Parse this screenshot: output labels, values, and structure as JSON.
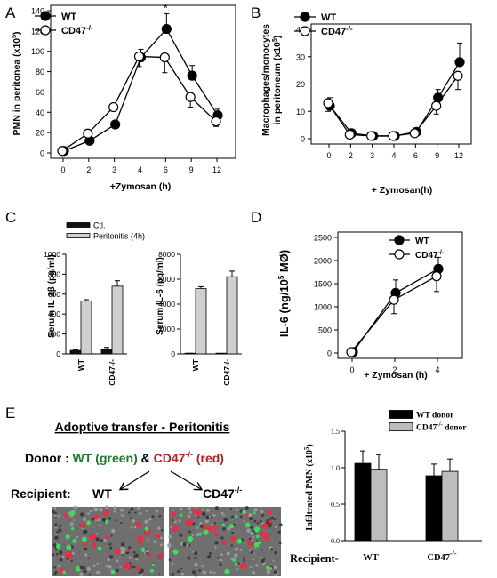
{
  "panels": {
    "A": {
      "letter": "A"
    },
    "B": {
      "letter": "B"
    },
    "C": {
      "letter": "C"
    },
    "D": {
      "letter": "D"
    },
    "E": {
      "letter": "E"
    }
  },
  "transfer": {
    "title": "Adoptive transfer - Peritonitis",
    "donor_prefix": "Donor : ",
    "donor_wt": "WT (green)",
    "donor_amp": " & ",
    "donor_cd47": "CD47",
    "donor_cd47_sup": "-/-",
    "donor_cd47_suffix": " (red)",
    "recipient_label": "Recipient:",
    "recipient_wt": "WT",
    "recipient_cd47": "CD47",
    "recipient_cd47_sup": "-/-",
    "colors": {
      "wt": "#1f7a2e",
      "cd47": "#b22222"
    }
  },
  "chart_data": [
    {
      "panel": "A",
      "type": "line",
      "x": [
        "0",
        "2",
        "3",
        "4",
        "6",
        "9",
        "12"
      ],
      "series": [
        {
          "name": "WT",
          "marker": "filled",
          "values": [
            2,
            12,
            28,
            94,
            122,
            76,
            37
          ],
          "errors": [
            0,
            3,
            3,
            8,
            15,
            10,
            6
          ]
        },
        {
          "name": "CD47",
          "name_sup": "-/-",
          "marker": "open",
          "values": [
            2,
            19,
            45,
            95,
            94,
            55,
            31
          ],
          "errors": [
            0,
            3,
            3,
            10,
            15,
            10,
            5
          ]
        }
      ],
      "ylim": [
        0,
        140
      ],
      "yticks": [
        "0",
        "20",
        "40",
        "60",
        "80",
        "100",
        "120",
        "140"
      ],
      "ylabel": "PMN in peritonea (x10",
      "ylabel_sup": "5",
      "ylabel_end": ")",
      "xlabel": "+Zymosan (h)",
      "annotation": "*",
      "annotation_index": 4,
      "legend": "top-left"
    },
    {
      "panel": "B",
      "type": "line",
      "x": [
        "0",
        "2",
        "3",
        "4",
        "6",
        "9",
        "12"
      ],
      "series": [
        {
          "name": "WT",
          "marker": "filled",
          "values": [
            12,
            2,
            1,
            1,
            2.5,
            15,
            28
          ],
          "errors": [
            3,
            1,
            0.5,
            0.5,
            1,
            3,
            7
          ]
        },
        {
          "name": "CD47",
          "name_sup": "-/-",
          "marker": "open",
          "values": [
            13,
            1.5,
            1,
            1,
            2,
            12,
            23
          ],
          "errors": [
            3,
            1,
            0.5,
            0.5,
            1,
            3,
            5
          ]
        }
      ],
      "ylim": [
        0,
        40
      ],
      "yticks": [
        "0",
        "10",
        "20",
        "30",
        "40"
      ],
      "ylabel_line1": "Macrophages/monocytes",
      "ylabel_line2": "in peritoneum (x10",
      "ylabel_sup": "5",
      "ylabel_end": ")",
      "xlabel": "+ Zymosan(h)",
      "legend": "top-left"
    },
    {
      "panel": "C1",
      "type": "bar",
      "categories": [
        "WT",
        "CD47-/-"
      ],
      "series": [
        {
          "name": "Ctl.",
          "color": "#111111",
          "values": [
            35,
            45
          ],
          "errors": [
            8,
            20
          ]
        },
        {
          "name": "Peritonitis (4h)",
          "color": "#cfcfcf",
          "values": [
            530,
            680
          ],
          "errors": [
            15,
            55
          ]
        }
      ],
      "ylim": [
        0,
        1000
      ],
      "yticks": [
        "0",
        "200",
        "400",
        "600",
        "800",
        "1000"
      ],
      "ylabel": "Serum IL-1β (pg/ml)",
      "legend": "top-left"
    },
    {
      "panel": "C2",
      "type": "bar",
      "categories": [
        "WT",
        "CD47-/-"
      ],
      "series": [
        {
          "name": "Ctl.",
          "color": "#111111",
          "values": [
            40,
            30
          ],
          "errors": [
            10,
            10
          ]
        },
        {
          "name": "Peritonitis (4h)",
          "color": "#cfcfcf",
          "values": [
            5250,
            6200
          ],
          "errors": [
            150,
            450
          ]
        }
      ],
      "ylim": [
        0,
        8000
      ],
      "yticks": [
        "0",
        "2000",
        "4000",
        "6000",
        "8000"
      ],
      "ylabel": "Serum IL-6 (pg/ml)"
    },
    {
      "panel": "D",
      "type": "line",
      "x": [
        "0",
        "2",
        "4"
      ],
      "series": [
        {
          "name": "WT",
          "marker": "filled",
          "values": [
            20,
            1300,
            1820
          ],
          "errors": [
            0,
            280,
            250
          ]
        },
        {
          "name": "CD47",
          "name_sup": "-/-",
          "marker": "open",
          "values": [
            20,
            1150,
            1660
          ],
          "errors": [
            0,
            300,
            330
          ]
        }
      ],
      "ylim": [
        0,
        2500
      ],
      "yticks": [
        "0",
        "500",
        "1000",
        "1500",
        "2000",
        "2500"
      ],
      "ylabel": "IL-6 (ng/10",
      "ylabel_sup": "5",
      "ylabel_end": " MØ)",
      "xlabel": "+ Zymosan (h)",
      "legend": "top-right"
    },
    {
      "panel": "E",
      "type": "bar",
      "categories": [
        "WT",
        "CD47"
      ],
      "category_sups": [
        "",
        "-/-"
      ],
      "series": [
        {
          "name": "WT donor",
          "color": "#000000",
          "values": [
            1.06,
            0.89
          ],
          "errors": [
            0.17,
            0.16
          ]
        },
        {
          "name": "CD47",
          "name_sup": "-/-",
          "name_end": " donor",
          "color": "#bdbdbd",
          "values": [
            0.98,
            0.95
          ],
          "errors": [
            0.2,
            0.17
          ]
        }
      ],
      "ylim": [
        0,
        1.5
      ],
      "yticks": [
        "0.0",
        "0.5",
        "1.0",
        "1.5"
      ],
      "ylabel": "Infiltrated PMN (x10",
      "ylabel_sup": "5",
      "ylabel_end": ")",
      "recipient_label": "Recipient-",
      "legend": "top"
    }
  ]
}
